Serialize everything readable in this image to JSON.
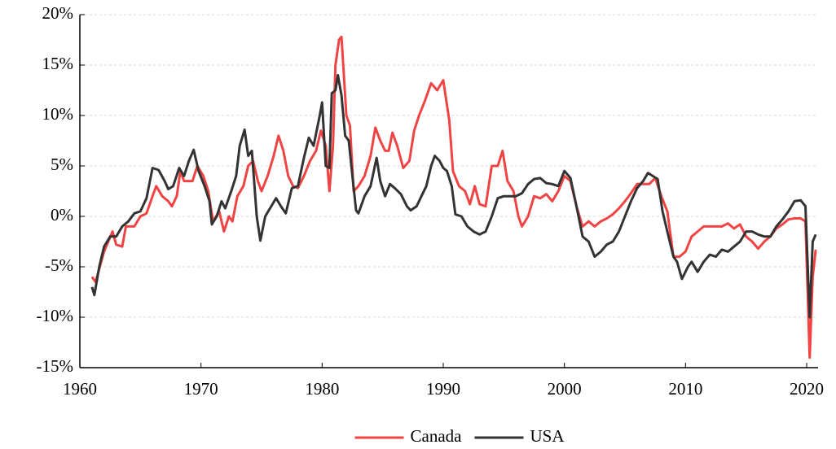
{
  "chart_data": {
    "type": "line",
    "xlim": [
      1960,
      2020
    ],
    "xticks": [
      1960,
      1970,
      1980,
      1990,
      2000,
      2010,
      2020
    ],
    "ylim": [
      -15,
      20
    ],
    "yticks": [
      {
        "value": -15,
        "label": "-15%"
      },
      {
        "value": -10,
        "label": "-10%"
      },
      {
        "value": -5,
        "label": "-5%"
      },
      {
        "value": 0,
        "label": "0%"
      },
      {
        "value": 5,
        "label": "5%"
      },
      {
        "value": 10,
        "label": "10%"
      },
      {
        "value": 15,
        "label": "15%"
      },
      {
        "value": 20,
        "label": "20%"
      }
    ],
    "grid": true,
    "legend": "bottom",
    "series": [
      {
        "name": "Canada",
        "color": "#f04444",
        "x": [
          1961,
          1961.3,
          1962,
          1962.7,
          1963,
          1963.5,
          1963.8,
          1964.5,
          1965,
          1965.5,
          1966,
          1966.3,
          1966.8,
          1967.3,
          1967.6,
          1968,
          1968.3,
          1968.6,
          1969,
          1969.3,
          1969.7,
          1970.2,
          1970.6,
          1971,
          1971.5,
          1971.9,
          1972.3,
          1972.6,
          1973,
          1973.5,
          1973.9,
          1974.3,
          1974.7,
          1975,
          1975.5,
          1976,
          1976.4,
          1976.8,
          1977.2,
          1977.6,
          1978,
          1978.5,
          1979,
          1979.5,
          1979.9,
          1980.3,
          1980.6,
          1980.9,
          1981.1,
          1981.4,
          1981.6,
          1982,
          1982.3,
          1982.6,
          1983,
          1983.5,
          1984,
          1984.4,
          1984.8,
          1985.2,
          1985.5,
          1985.8,
          1986.2,
          1986.7,
          1987.2,
          1987.6,
          1988,
          1988.5,
          1989,
          1989.5,
          1990,
          1990.5,
          1990.8,
          1991.3,
          1991.8,
          1992.2,
          1992.6,
          1993,
          1993.5,
          1994,
          1994.5,
          1994.9,
          1995.3,
          1995.8,
          1996.2,
          1996.5,
          1997,
          1997.5,
          1998,
          1998.5,
          1999,
          1999.5,
          2000,
          2000.5,
          2001,
          2001.5,
          2002,
          2002.5,
          2003,
          2003.5,
          2004,
          2004.5,
          2005,
          2005.5,
          2006,
          2006.5,
          2007,
          2007.5,
          2008,
          2008.5,
          2009,
          2009.5,
          2010,
          2010.5,
          2011,
          2011.5,
          2012,
          2012.5,
          2013,
          2013.5,
          2014,
          2014.5,
          2015,
          2015.5,
          2016,
          2016.5,
          2017,
          2017.5,
          2018,
          2018.5,
          2019,
          2019.5,
          2019.9,
          2020.25,
          2020.5,
          2020.75
        ],
        "values": [
          -6,
          -6.5,
          -3.5,
          -1.5,
          -2.8,
          -3,
          -1,
          -1,
          0,
          0.3,
          2,
          3,
          2,
          1.5,
          1,
          2,
          4.5,
          3.5,
          3.5,
          3.5,
          5,
          4,
          2.5,
          -0.5,
          0.5,
          -1.5,
          0,
          -0.5,
          2,
          3,
          5,
          5.5,
          3.5,
          2.5,
          4,
          6,
          8,
          6.5,
          4,
          3,
          2.8,
          4,
          5.5,
          6.5,
          8.5,
          7,
          2.5,
          7,
          15,
          17.5,
          17.8,
          10,
          9,
          2.5,
          3,
          4,
          6,
          8.8,
          7.5,
          6.5,
          6.5,
          8.3,
          7,
          4.8,
          5.5,
          8.5,
          10,
          11.5,
          13.2,
          12.5,
          13.5,
          9.5,
          4.5,
          3,
          2.5,
          1.2,
          3,
          1.2,
          1,
          5,
          5,
          6.5,
          3.5,
          2.5,
          0,
          -1,
          0,
          2,
          1.8,
          2.2,
          1.5,
          2.5,
          4,
          3.5,
          1,
          -1,
          -0.5,
          -1,
          -0.5,
          -0.2,
          0.2,
          0.8,
          1.5,
          2.3,
          3.2,
          3.2,
          3.2,
          3.8,
          2,
          0.5,
          -4,
          -4,
          -3.5,
          -2,
          -1.5,
          -1,
          -1,
          -1,
          -1,
          -0.7,
          -1.2,
          -0.8,
          -2,
          -2.5,
          -3.2,
          -2.5,
          -2,
          -1.2,
          -0.8,
          -0.3,
          -0.2,
          -0.2,
          -0.5,
          -14,
          -6,
          -3.3
        ]
      },
      {
        "name": "USA",
        "color": "#333333",
        "x": [
          1961,
          1961.2,
          1961.6,
          1962,
          1962.5,
          1963,
          1963.5,
          1964,
          1964.5,
          1965,
          1965.5,
          1966,
          1966.5,
          1967,
          1967.3,
          1967.7,
          1968.2,
          1968.6,
          1969,
          1969.4,
          1969.8,
          1970.3,
          1970.7,
          1970.9,
          1971.3,
          1971.7,
          1972,
          1972.5,
          1972.9,
          1973.2,
          1973.6,
          1973.9,
          1974.2,
          1974.6,
          1974.9,
          1975.3,
          1975.8,
          1976.2,
          1976.6,
          1977,
          1977.5,
          1978,
          1978.5,
          1978.9,
          1979.3,
          1979.8,
          1980,
          1980.3,
          1980.6,
          1980.8,
          1981.1,
          1981.3,
          1981.6,
          1981.9,
          1982.2,
          1982.5,
          1982.8,
          1983,
          1983.5,
          1984,
          1984.5,
          1984.8,
          1985.2,
          1985.6,
          1986,
          1986.5,
          1987,
          1987.3,
          1987.8,
          1988.2,
          1988.6,
          1989,
          1989.3,
          1989.7,
          1990,
          1990.3,
          1990.7,
          1991,
          1991.5,
          1992,
          1992.5,
          1993,
          1993.5,
          1994,
          1994.5,
          1995,
          1995.5,
          1996,
          1996.5,
          1997,
          1997.5,
          1998,
          1998.5,
          1999,
          1999.5,
          2000,
          2000.5,
          2001,
          2001.5,
          2002,
          2002.5,
          2003,
          2003.5,
          2004,
          2004.5,
          2005,
          2005.5,
          2006,
          2006.5,
          2006.9,
          2007.3,
          2007.7,
          2008.1,
          2008.5,
          2009,
          2009.3,
          2009.7,
          2010.2,
          2010.5,
          2011,
          2011.5,
          2012,
          2012.5,
          2013,
          2013.5,
          2014,
          2014.5,
          2015,
          2015.5,
          2016,
          2016.5,
          2017,
          2017.5,
          2018,
          2018.5,
          2019,
          2019.5,
          2019.9,
          2020.25,
          2020.5,
          2020.75
        ],
        "values": [
          -7,
          -7.8,
          -5,
          -3,
          -2,
          -2,
          -1,
          -0.5,
          0.3,
          0.5,
          1.8,
          4.8,
          4.6,
          3.5,
          2.7,
          3,
          4.8,
          4,
          5.5,
          6.6,
          4.5,
          3,
          1.5,
          -0.8,
          0,
          1.5,
          0.8,
          2.5,
          4,
          7,
          8.6,
          6,
          6.5,
          0,
          -2.4,
          0,
          1,
          1.8,
          1,
          0.3,
          2.8,
          3,
          5.8,
          7.8,
          7,
          10,
          11.3,
          5,
          4.8,
          12.2,
          12.5,
          14,
          12,
          8,
          7.5,
          4,
          0.6,
          0.3,
          2,
          3,
          5.8,
          3.5,
          2,
          3.2,
          2.8,
          2.2,
          1,
          0.6,
          1,
          2,
          3,
          5,
          6,
          5.5,
          4.8,
          4.5,
          3,
          0.2,
          0,
          -1,
          -1.5,
          -1.8,
          -1.5,
          0,
          1.8,
          2,
          2,
          2,
          2.3,
          3.2,
          3.7,
          3.8,
          3.3,
          3.2,
          3,
          4.5,
          3.8,
          1,
          -2,
          -2.5,
          -4,
          -3.5,
          -2.8,
          -2.5,
          -1.5,
          0,
          1.5,
          2.8,
          3.5,
          4.3,
          4,
          3.7,
          0.5,
          -1.5,
          -4,
          -4.5,
          -6.2,
          -5,
          -4.5,
          -5.5,
          -4.5,
          -3.8,
          -4,
          -3.3,
          -3.5,
          -3,
          -2.5,
          -1.5,
          -1.5,
          -1.8,
          -2,
          -2,
          -1,
          -0.3,
          0.5,
          1.5,
          1.6,
          1,
          -10,
          -2.5,
          -1.8
        ]
      }
    ]
  }
}
